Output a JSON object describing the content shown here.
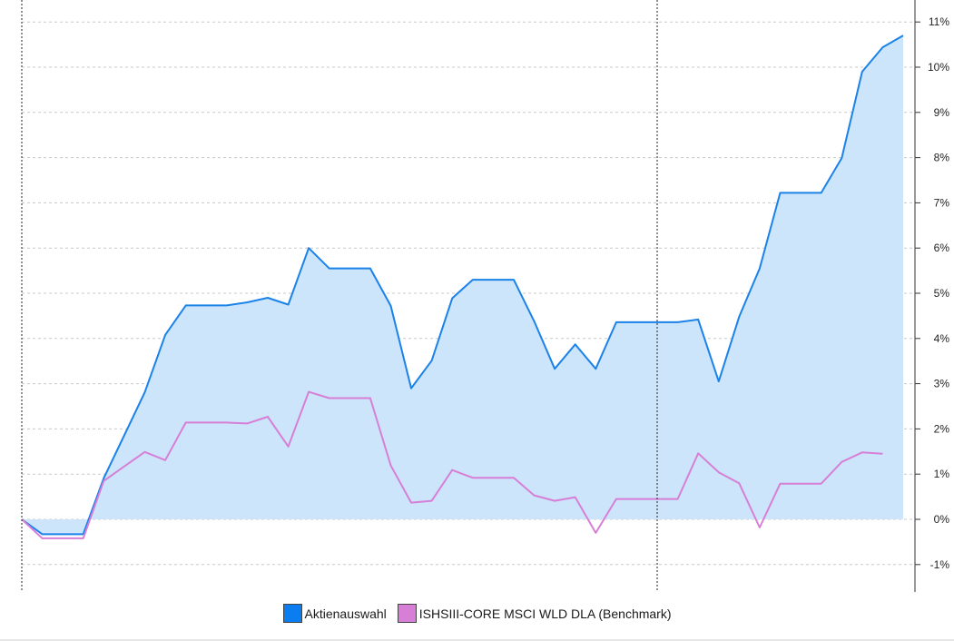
{
  "chart_data": {
    "type": "area",
    "title": "",
    "xlabel": "",
    "ylabel": "",
    "ylim": [
      -1.6,
      11.3
    ],
    "y_ticks": [
      -1,
      0,
      1,
      2,
      3,
      4,
      5,
      6,
      7,
      8,
      9,
      10,
      11
    ],
    "y_tick_labels": [
      "-1%",
      "0%",
      "1%",
      "2%",
      "3%",
      "4%",
      "5%",
      "6%",
      "7%",
      "8%",
      "9%",
      "10%",
      "11%"
    ],
    "y_axis_position": "right",
    "grid": true,
    "legend_position": "bottom-center",
    "series": [
      {
        "name": "Aktienauswahl",
        "color": "#1a82e8",
        "fill": "#cce5fa",
        "style": "area",
        "values": [
          0.0,
          -0.33,
          -0.33,
          -0.33,
          0.91,
          1.86,
          2.81,
          4.08,
          4.73,
          4.73,
          4.73,
          4.8,
          4.9,
          4.75,
          6.0,
          5.55,
          5.55,
          5.55,
          4.72,
          2.9,
          3.51,
          4.89,
          5.3,
          5.3,
          5.3,
          4.38,
          3.33,
          3.87,
          3.33,
          4.36,
          4.36,
          4.36,
          4.36,
          4.42,
          3.05,
          4.48,
          5.55,
          7.22,
          7.22,
          7.22,
          7.99,
          9.9,
          10.44,
          10.7
        ]
      },
      {
        "name": "ISHSIII-CORE MSCI WLD DLA (Benchmark)",
        "color": "#d77fd7",
        "style": "line",
        "values": [
          0.0,
          -0.42,
          -0.42,
          -0.42,
          0.85,
          1.17,
          1.49,
          1.31,
          2.14,
          2.14,
          2.14,
          2.12,
          2.27,
          1.61,
          2.82,
          2.68,
          2.68,
          2.68,
          1.19,
          0.37,
          0.41,
          1.09,
          0.92,
          0.92,
          0.92,
          0.53,
          0.41,
          0.49,
          -0.3,
          0.45,
          0.45,
          0.45,
          0.45,
          1.46,
          1.04,
          0.8,
          -0.18,
          0.79,
          0.79,
          0.79,
          1.27,
          1.48,
          1.45,
          null
        ]
      }
    ],
    "markers": [
      0,
      31
    ]
  }
}
